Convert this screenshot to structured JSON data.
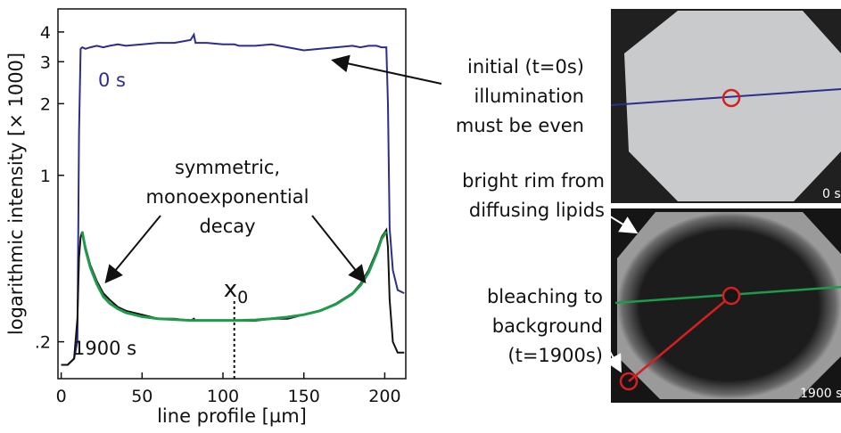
{
  "chart_data": {
    "type": "line",
    "xlabel": "line profile [µm]",
    "ylabel": "logarithmic intensity  [× 1000]",
    "log_y": true,
    "xlim": [
      -2,
      213
    ],
    "ylim": [
      0.14,
      5
    ],
    "xticks": [
      0,
      50,
      100,
      150,
      200
    ],
    "yticks": [
      {
        "value": 0.2,
        "label": ".2"
      },
      1,
      2,
      3,
      4
    ],
    "x": [
      0,
      4,
      8,
      10,
      11,
      12,
      13,
      15,
      18,
      22,
      26,
      30,
      35,
      40,
      50,
      60,
      70,
      80,
      82,
      83,
      90,
      100,
      107,
      110,
      120,
      130,
      140,
      150,
      160,
      170,
      180,
      185,
      190,
      195,
      198,
      201,
      202,
      203,
      205,
      208,
      212
    ],
    "series": [
      {
        "name": "0 s",
        "color": "#2b2e8c",
        "values": [
          0.16,
          0.16,
          0.17,
          0.2,
          1.5,
          3.4,
          3.45,
          3.4,
          3.45,
          3.5,
          3.45,
          3.5,
          3.55,
          3.5,
          3.55,
          3.6,
          3.6,
          3.7,
          3.9,
          3.6,
          3.6,
          3.55,
          3.55,
          3.5,
          3.5,
          3.55,
          3.45,
          3.35,
          3.4,
          3.45,
          3.5,
          3.45,
          3.5,
          3.5,
          3.45,
          3.45,
          2.0,
          0.6,
          0.4,
          0.33,
          0.32
        ]
      },
      {
        "name": "1900 s",
        "color": "#111111",
        "values": [
          0.16,
          0.16,
          0.17,
          0.25,
          0.45,
          0.55,
          0.58,
          0.5,
          0.42,
          0.36,
          0.32,
          0.3,
          0.28,
          0.27,
          0.26,
          0.25,
          0.25,
          0.245,
          0.25,
          0.245,
          0.245,
          0.245,
          0.245,
          0.245,
          0.245,
          0.25,
          0.25,
          0.26,
          0.27,
          0.29,
          0.32,
          0.35,
          0.4,
          0.48,
          0.55,
          0.59,
          0.5,
          0.3,
          0.2,
          0.18,
          0.18
        ]
      },
      {
        "color": "#1e9a4a",
        "values": [
          null,
          null,
          null,
          null,
          null,
          null,
          0.58,
          0.49,
          0.41,
          0.35,
          0.31,
          0.29,
          0.275,
          0.265,
          0.255,
          0.25,
          0.248,
          0.246,
          0.246,
          0.246,
          0.246,
          0.246,
          0.246,
          0.246,
          0.247,
          0.25,
          0.254,
          0.26,
          0.27,
          0.288,
          0.318,
          0.345,
          0.39,
          0.47,
          0.54,
          0.58,
          null,
          null,
          null,
          null,
          null
        ]
      }
    ],
    "marker_x": 107,
    "marker_label": {
      "base": "x",
      "sub": "0"
    },
    "annotations": [
      "symmetric,",
      "monoexponential",
      "decay"
    ]
  },
  "callouts": [
    "initial (t=0s)",
    "illumination",
    "must be even",
    "bright rim from",
    "diffusing lipids",
    "bleaching to",
    "background",
    "(t=1900s)"
  ],
  "image_labels": [
    "0 s",
    "1900 s"
  ]
}
